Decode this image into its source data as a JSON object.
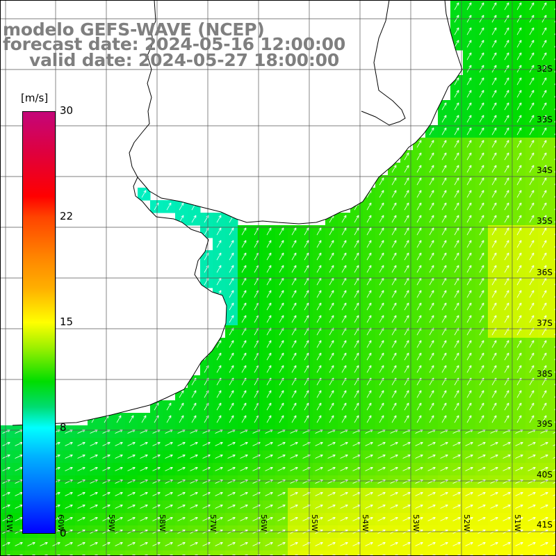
{
  "title": {
    "line1": "modelo GEFS-WAVE (NCEP)",
    "line2": "forecast date: 2024-05-16 12:00:00",
    "line3": "valid date: 2024-05-27 18:00:00"
  },
  "colorbar": {
    "units": "[m/s]",
    "ticks": [
      "30",
      "22",
      "15",
      "8",
      "0"
    ],
    "range": [
      0,
      30
    ],
    "colors": [
      "#0000ff",
      "#00ffff",
      "#00dd00",
      "#ffff00",
      "#ff4400",
      "#ff0000",
      "#c4067a"
    ]
  },
  "lat_labels": [
    "32S",
    "33S",
    "34S",
    "35S",
    "36S",
    "37S",
    "38S",
    "39S",
    "40S",
    "41S"
  ],
  "lon_labels": [
    "61W",
    "60W",
    "59W",
    "58W",
    "57W",
    "56W",
    "55W",
    "54W",
    "53W",
    "52W",
    "51W"
  ],
  "map": {
    "grid": true,
    "ocean_color": "#00e000",
    "land_color": "#ffffff",
    "coast_color": "#000000",
    "field": "wind speed with direction arrows",
    "arrow_color": "#ffffff"
  }
}
